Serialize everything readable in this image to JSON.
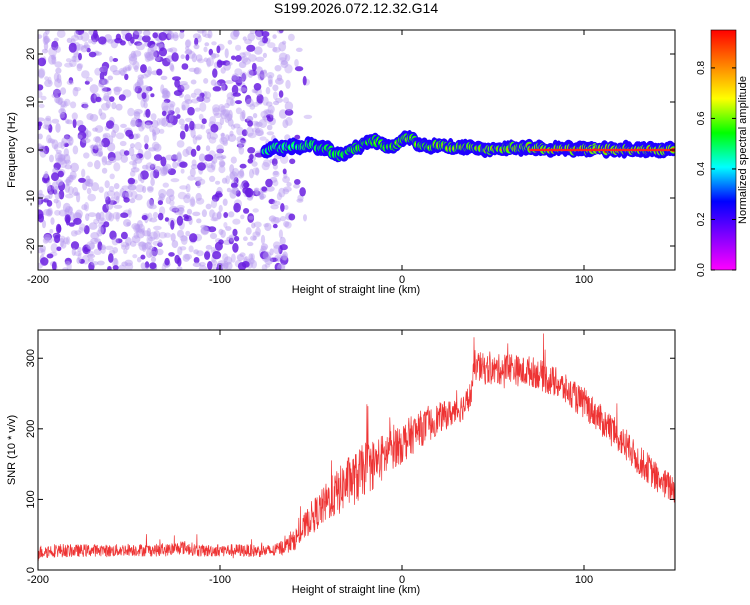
{
  "figure_title": "S199.2026.072.12.32.G14",
  "chart_data": [
    {
      "type": "heatmap",
      "title": "S199.2026.072.12.32.G14",
      "xlabel": "Height of straight line (km)",
      "ylabel": "Frequency (Hz)",
      "xlim": [
        -200,
        150
      ],
      "ylim": [
        -25,
        25
      ],
      "x_ticks": [
        -200,
        -100,
        0,
        100
      ],
      "x_tick_labels": [
        "-200",
        "-100",
        "0",
        "100"
      ],
      "y_ticks": [
        -20,
        -10,
        0,
        10,
        20
      ],
      "y_tick_labels": [
        "-20",
        "-10",
        "0",
        "10",
        "20"
      ],
      "colorbar": {
        "label": "Normalized spectral amplitude",
        "range": [
          0.0,
          0.95
        ],
        "ticks": [
          0.0,
          0.2,
          0.4,
          0.6,
          0.8
        ],
        "tick_labels": [
          "0.0",
          "0.2",
          "0.4",
          "0.6",
          "0.8"
        ],
        "colormap": [
          "#ff00ff",
          "#8000ff",
          "#0000ff",
          "#00ffff",
          "#00ff00",
          "#ffff00",
          "#ff8000",
          "#ff0000"
        ]
      },
      "noise_region": {
        "x_range": [
          -200,
          -62
        ],
        "color": "#7a30e0",
        "description_values": [
          0.05,
          0.2
        ]
      },
      "signal_ridge": {
        "x": [
          -75,
          -70,
          -65,
          -60,
          -55,
          -50,
          -45,
          -40,
          -35,
          -30,
          -25,
          -20,
          -15,
          -10,
          -5,
          0,
          5,
          10,
          15,
          20,
          30,
          40,
          50,
          60,
          70,
          80,
          90,
          100,
          110,
          120,
          130,
          140,
          150
        ],
        "frequency": [
          0,
          0.5,
          0.3,
          1,
          0.5,
          1.5,
          0.5,
          0,
          -1,
          -0.5,
          0.5,
          1.5,
          2,
          1,
          0.5,
          2,
          2.5,
          1,
          0.5,
          1,
          0.5,
          0.5,
          0,
          0.5,
          0.5,
          0.3,
          0.2,
          0.2,
          0.1,
          0.1,
          0,
          0,
          0
        ],
        "amplitude": [
          0.3,
          0.35,
          0.35,
          0.4,
          0.4,
          0.45,
          0.45,
          0.5,
          0.5,
          0.5,
          0.55,
          0.6,
          0.6,
          0.6,
          0.65,
          0.7,
          0.7,
          0.7,
          0.7,
          0.75,
          0.75,
          0.8,
          0.8,
          0.8,
          0.85,
          0.85,
          0.9,
          0.9,
          0.9,
          0.9,
          0.9,
          0.9,
          0.9
        ]
      },
      "color_line": "#ff2020"
    },
    {
      "type": "line",
      "title": "",
      "xlabel": "Height of straight line (km)",
      "ylabel": "SNR (10 * v/v)",
      "xlim": [
        -200,
        150
      ],
      "ylim": [
        0,
        340
      ],
      "x_ticks": [
        -200,
        -100,
        0,
        100
      ],
      "x_tick_labels": [
        "-200",
        "-100",
        "0",
        "100"
      ],
      "y_ticks": [
        0,
        100,
        200,
        300
      ],
      "y_tick_labels": [
        "0",
        "100",
        "200",
        "300"
      ],
      "series": [
        {
          "name": "SNR",
          "color": "#ee3333",
          "x": [
            -200,
            -190,
            -180,
            -170,
            -160,
            -150,
            -140,
            -130,
            -120,
            -110,
            -100,
            -90,
            -80,
            -70,
            -60,
            -55,
            -50,
            -45,
            -40,
            -35,
            -30,
            -25,
            -20,
            -15,
            -10,
            -5,
            0,
            5,
            10,
            15,
            20,
            25,
            30,
            35,
            38,
            40,
            45,
            50,
            55,
            60,
            65,
            70,
            75,
            80,
            85,
            90,
            95,
            100,
            105,
            110,
            115,
            120,
            125,
            130,
            135,
            140,
            145,
            150
          ],
          "y": [
            25,
            28,
            27,
            28,
            27,
            29,
            28,
            28,
            32,
            27,
            28,
            28,
            27,
            27,
            40,
            55,
            75,
            85,
            100,
            110,
            125,
            130,
            145,
            150,
            160,
            175,
            180,
            190,
            200,
            205,
            215,
            220,
            225,
            235,
            250,
            290,
            285,
            282,
            285,
            288,
            280,
            282,
            278,
            270,
            265,
            255,
            245,
            235,
            225,
            210,
            200,
            185,
            170,
            155,
            145,
            130,
            120,
            115
          ],
          "noise_amplitude": [
            10,
            10,
            9,
            9,
            9,
            9,
            9,
            9,
            10,
            9,
            9,
            9,
            9,
            9,
            14,
            18,
            22,
            26,
            30,
            34,
            36,
            38,
            38,
            36,
            34,
            32,
            30,
            28,
            26,
            24,
            22,
            20,
            20,
            20,
            20,
            22,
            22,
            22,
            22,
            22,
            22,
            22,
            22,
            22,
            22,
            22,
            22,
            22,
            22,
            22,
            22,
            22,
            22,
            22,
            22,
            22,
            22,
            22
          ]
        }
      ]
    }
  ]
}
